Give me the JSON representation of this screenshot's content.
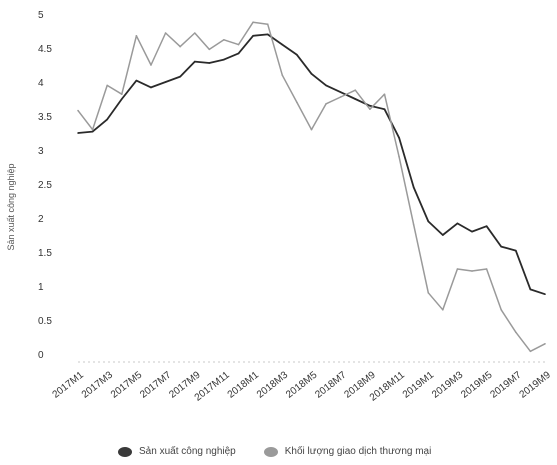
{
  "chart_data": {
    "type": "line",
    "ylabel": "Sản xuất công nghiệp",
    "ylim": [
      0,
      5
    ],
    "yticks": [
      "0",
      "0.5",
      "1",
      "1.5",
      "2",
      "2.5",
      "3",
      "3.5",
      "4",
      "4.5",
      "5"
    ],
    "x": [
      "2017M1",
      "2017M2",
      "2017M3",
      "2017M4",
      "2017M5",
      "2017M6",
      "2017M7",
      "2017M8",
      "2017M9",
      "2017M10",
      "2017M11",
      "2017M12",
      "2018M1",
      "2018M2",
      "2018M3",
      "2018M4",
      "2018M5",
      "2018M6",
      "2018M7",
      "2018M8",
      "2018M9",
      "2018M10",
      "2018M11",
      "2018M12",
      "2019M1",
      "2019M2",
      "2019M3",
      "2019M4",
      "2019M5",
      "2019M6",
      "2019M7",
      "2019M8",
      "2019M9"
    ],
    "xtick_labels": [
      "2017M1",
      "2017M3",
      "2017M5",
      "2017M7",
      "2017M9",
      "2017M11",
      "2018M1",
      "2018M3",
      "2018M5",
      "2018M7",
      "2018M9",
      "2018M11",
      "2019M1",
      "2019M3",
      "2019M5",
      "2019M7",
      "2019M9"
    ],
    "series": [
      {
        "name": "Sản xuất công nghiệp",
        "color": "#2a2a2a",
        "values": [
          3.25,
          3.27,
          3.45,
          3.75,
          4.02,
          3.92,
          4.0,
          4.08,
          4.3,
          4.28,
          4.33,
          4.42,
          4.68,
          4.7,
          4.55,
          4.4,
          4.12,
          3.95,
          3.85,
          3.75,
          3.65,
          3.6,
          3.18,
          2.45,
          1.95,
          1.75,
          1.92,
          1.8,
          1.88,
          1.58,
          1.52,
          0.95,
          0.88
        ]
      },
      {
        "name": "Khối lượng giao dịch thương mại",
        "color": "#9a9a9a",
        "values": [
          3.58,
          3.3,
          3.95,
          3.82,
          4.68,
          4.25,
          4.72,
          4.52,
          4.72,
          4.48,
          4.62,
          4.55,
          4.88,
          4.85,
          4.1,
          3.7,
          3.3,
          3.68,
          3.78,
          3.88,
          3.6,
          3.82,
          2.9,
          1.9,
          0.9,
          0.65,
          1.25,
          1.22,
          1.25,
          0.65,
          0.32,
          0.04,
          0.15
        ]
      }
    ]
  }
}
